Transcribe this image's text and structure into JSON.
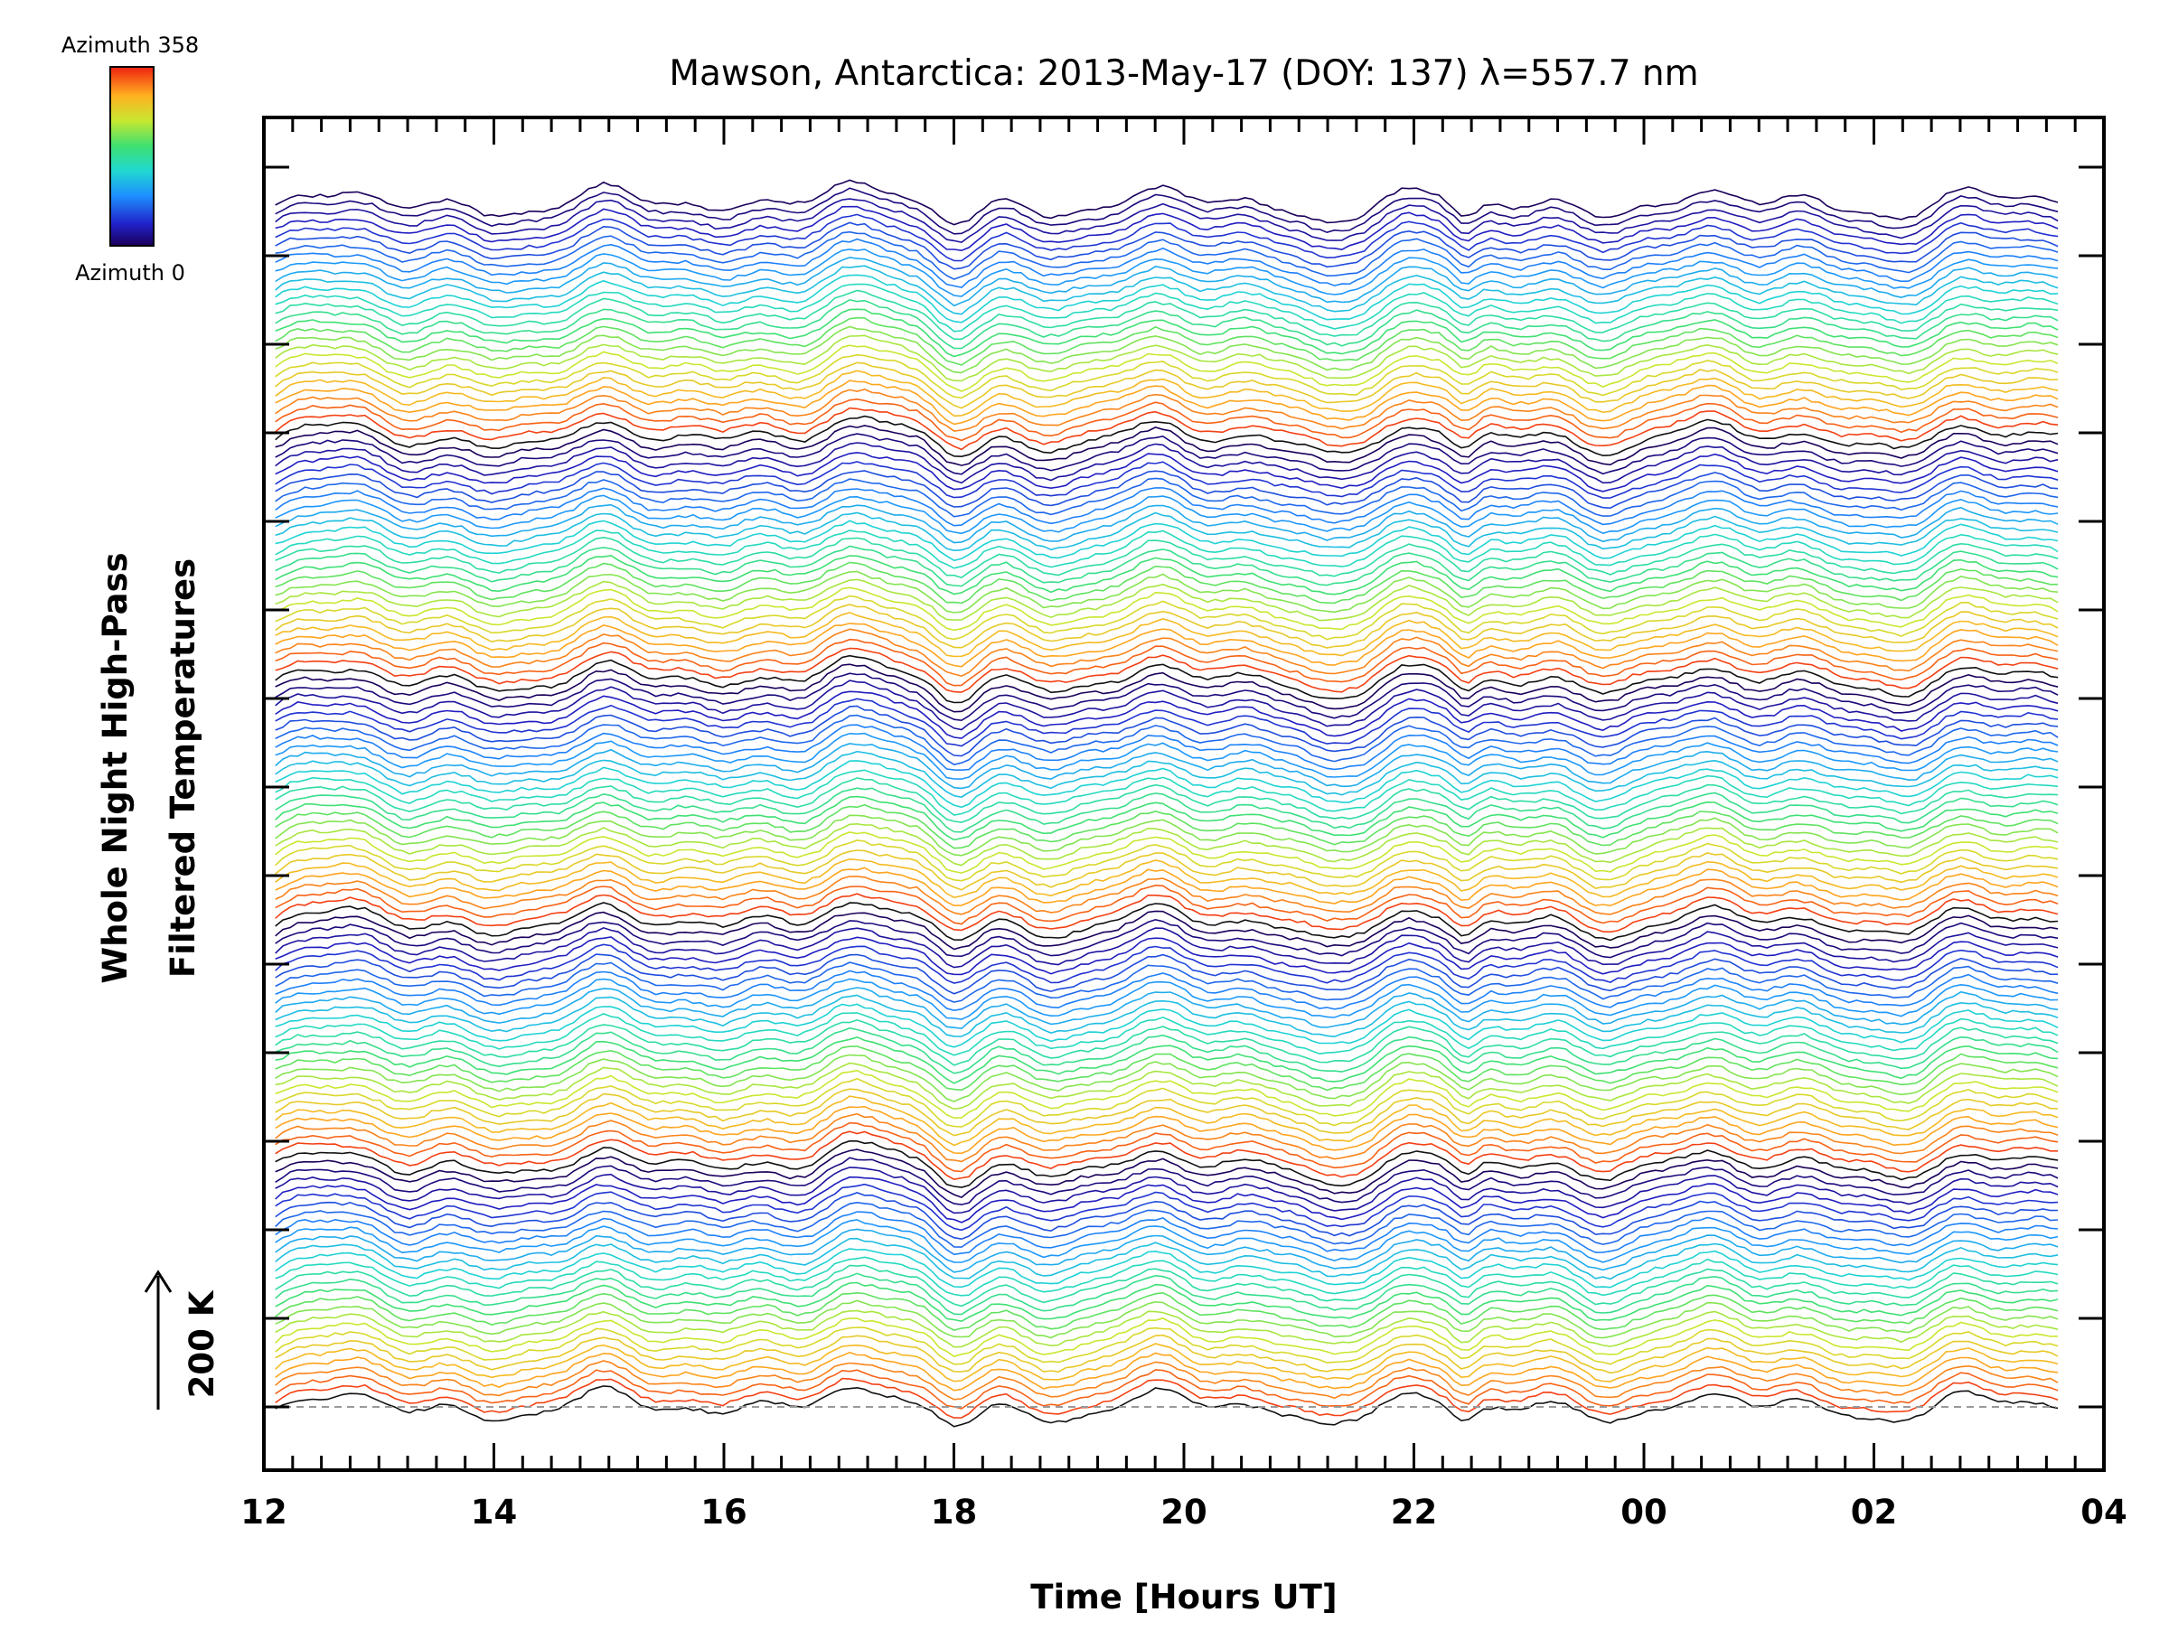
{
  "chart_data": {
    "type": "line",
    "title": "Mawson, Antarctica: 2013-May-17 (DOY: 137) λ=557.7 nm",
    "xlabel": "Time [Hours UT]",
    "ylabel_line1": "Whole Night High-Pass",
    "ylabel_line2": "Filtered Temperatures",
    "x_tick_labels": [
      "12",
      "14",
      "16",
      "18",
      "20",
      "22",
      "00",
      "02",
      "04"
    ],
    "x_tick_hours": [
      12,
      14,
      16,
      18,
      20,
      22,
      24,
      26,
      28
    ],
    "xlim_hours": [
      12,
      28
    ],
    "data_range_hours": [
      12.1,
      27.6
    ],
    "scale_bar_label": "200 K",
    "colorbar": {
      "top_label": "Azimuth  358",
      "bottom_label": "Azimuth  0",
      "min": 0,
      "max": 358
    },
    "series_count": 140,
    "series_description": "stacked traces, one per azimuth, coloured by azimuth 0-358 (rainbow), offset vertically; baseline shown dashed",
    "baseline_dashed": true,
    "colors": {
      "axis": "#000000",
      "baseline": "#999999"
    }
  }
}
